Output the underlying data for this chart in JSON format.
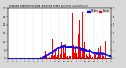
{
  "title": "Milwaukee Weather Wind Speed  Actual and Median  by Minute  (24 Hours) (Old)",
  "n_points": 1440,
  "actual_color": "#ff0000",
  "median_color": "#0000ff",
  "background_color": "#d8d8d8",
  "plot_bg_color": "#ffffff",
  "ylim": [
    0,
    30
  ],
  "xlim": [
    0,
    1440
  ],
  "legend_actual": "Actual",
  "legend_median": "Median",
  "grid_color": "#aaaaaa",
  "border_color": "#666666",
  "wind_start_minute": 480,
  "wind_peak_minute": 800,
  "wind_end_minute": 1380
}
